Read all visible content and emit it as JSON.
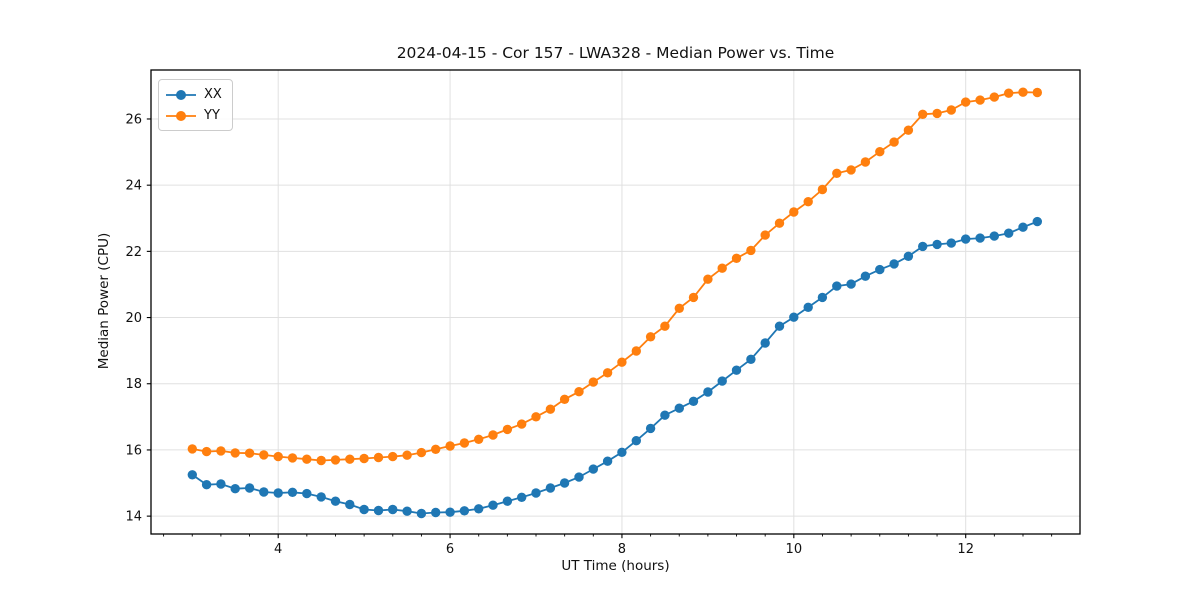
{
  "chart_data": {
    "type": "line",
    "title": "2024-04-15 - Cor 157 - LWA328 - Median Power vs. Time",
    "xlabel": "UT Time (hours)",
    "ylabel": "Median Power (CPU)",
    "xlim": [
      2.52,
      13.33
    ],
    "ylim": [
      13.46,
      27.48
    ],
    "x_ticks": [
      4,
      6,
      8,
      10,
      12
    ],
    "y_ticks": [
      14,
      16,
      18,
      20,
      22,
      24,
      26
    ],
    "x_minor_step": 0.3333333,
    "grid": true,
    "grid_color": "#e0e0e0",
    "legend_position": "upper-left",
    "x": [
      3.0,
      3.167,
      3.333,
      3.5,
      3.667,
      3.833,
      4.0,
      4.167,
      4.333,
      4.5,
      4.667,
      4.833,
      5.0,
      5.167,
      5.333,
      5.5,
      5.667,
      5.833,
      6.0,
      6.167,
      6.333,
      6.5,
      6.667,
      6.833,
      7.0,
      7.167,
      7.333,
      7.5,
      7.667,
      7.833,
      8.0,
      8.167,
      8.333,
      8.5,
      8.667,
      8.833,
      9.0,
      9.167,
      9.333,
      9.5,
      9.667,
      9.833,
      10.0,
      10.167,
      10.333,
      10.5,
      10.667,
      10.833,
      11.0,
      11.167,
      11.333,
      11.5,
      11.667,
      11.833,
      12.0,
      12.167,
      12.333,
      12.5,
      12.667,
      12.833
    ],
    "series": [
      {
        "name": "XX",
        "color": "#1f77b4",
        "values": [
          15.25,
          14.95,
          14.97,
          14.83,
          14.85,
          14.73,
          14.7,
          14.72,
          14.68,
          14.58,
          14.45,
          14.35,
          14.2,
          14.17,
          14.2,
          14.15,
          14.08,
          14.11,
          14.12,
          14.16,
          14.22,
          14.33,
          14.45,
          14.57,
          14.7,
          14.85,
          15.0,
          15.18,
          15.42,
          15.66,
          15.93,
          16.28,
          16.65,
          17.05,
          17.26,
          17.47,
          17.75,
          18.08,
          18.41,
          18.74,
          19.23,
          19.74,
          20.01,
          20.31,
          20.61,
          20.95,
          21.01,
          21.25,
          21.45,
          21.62,
          21.85,
          22.15,
          22.21,
          22.25,
          22.37,
          22.4,
          22.46,
          22.55,
          22.73,
          22.9
        ]
      },
      {
        "name": "YY",
        "color": "#ff7f0e",
        "values": [
          16.03,
          15.95,
          15.97,
          15.91,
          15.9,
          15.85,
          15.8,
          15.76,
          15.72,
          15.68,
          15.7,
          15.72,
          15.74,
          15.77,
          15.8,
          15.84,
          15.92,
          16.02,
          16.12,
          16.21,
          16.32,
          16.45,
          16.62,
          16.78,
          17.0,
          17.23,
          17.53,
          17.76,
          18.05,
          18.33,
          18.65,
          18.99,
          19.42,
          19.74,
          20.28,
          20.61,
          21.16,
          21.49,
          21.79,
          22.03,
          22.49,
          22.85,
          23.19,
          23.5,
          23.87,
          24.36,
          24.46,
          24.7,
          25.01,
          25.3,
          25.66,
          26.14,
          26.17,
          26.27,
          26.51,
          26.57,
          26.66,
          26.78,
          26.81,
          26.8
        ]
      }
    ]
  }
}
